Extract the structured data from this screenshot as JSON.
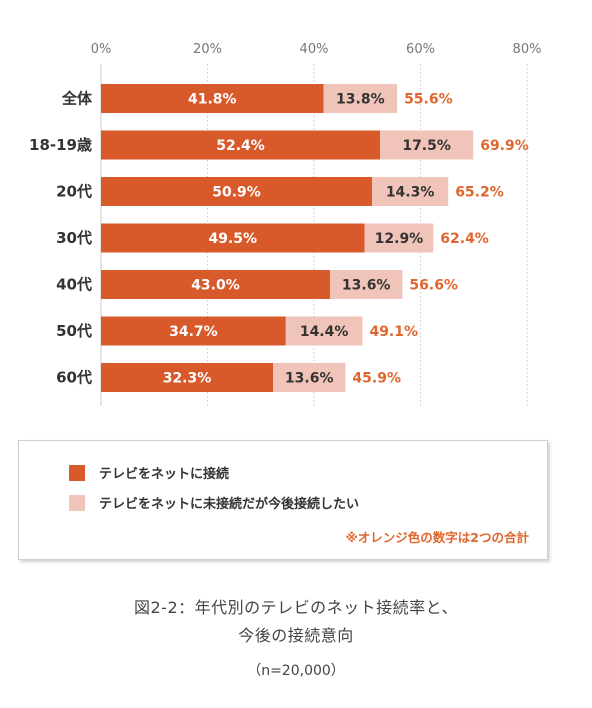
{
  "chart_data": {
    "type": "bar",
    "stacked": true,
    "orientation": "horizontal",
    "categories": [
      "全体",
      "18-19歳",
      "20代",
      "30代",
      "40代",
      "50代",
      "60代"
    ],
    "series": [
      {
        "name": "テレビをネットに接続",
        "values": [
          41.8,
          52.4,
          50.9,
          49.5,
          43.0,
          34.7,
          32.3
        ],
        "labels": [
          "41.8%",
          "52.4%",
          "50.9%",
          "49.5%",
          "43.0%",
          "34.7%",
          "32.3%"
        ],
        "color": "#d85a2a"
      },
      {
        "name": "テレビをネットに未接続だが今後接続したい",
        "values": [
          13.8,
          17.5,
          14.3,
          12.9,
          13.6,
          14.4,
          13.6
        ],
        "labels": [
          "13.8%",
          "17.5%",
          "14.3%",
          "12.9%",
          "13.6%",
          "14.4%",
          "13.6%"
        ],
        "color": "#f0c4b8"
      }
    ],
    "totals": [
      55.6,
      69.9,
      65.2,
      62.4,
      56.6,
      49.1,
      45.9
    ],
    "total_labels": [
      "55.6%",
      "69.9%",
      "65.2%",
      "62.4%",
      "56.6%",
      "49.1%",
      "45.9%"
    ],
    "total_color": "#e0662e",
    "xlim": [
      0,
      80
    ],
    "x_ticks": [
      0,
      20,
      40,
      60,
      80
    ],
    "x_tick_labels": [
      "0%",
      "20%",
      "40%",
      "60%",
      "80%"
    ],
    "grid": true
  },
  "legend": {
    "items": [
      {
        "label": "テレビをネットに接続",
        "color": "#d85a2a"
      },
      {
        "label": "テレビをネットに未接続だが今後接続したい",
        "color": "#f0c4b8"
      }
    ],
    "note": "※オレンジ色の数字は2つの合計",
    "note_color": "#e0662e"
  },
  "caption": {
    "line1": "図2-2：年代別のテレビのネット接続率と、",
    "line2": "今後の接続意向",
    "sample": "（n=20,000）"
  }
}
